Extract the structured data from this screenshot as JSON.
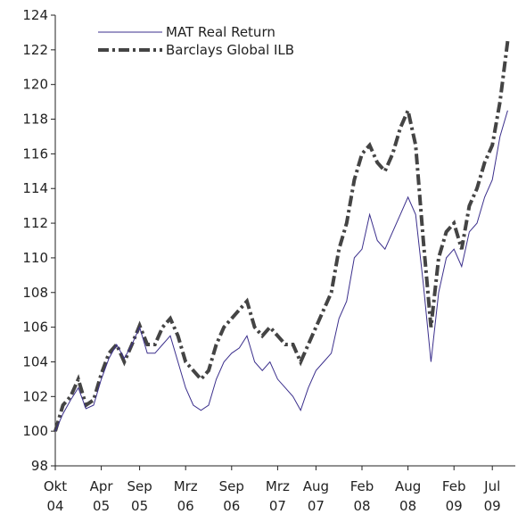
{
  "chart_data": {
    "type": "line",
    "x": [
      "2004-10",
      "2004-11",
      "2004-12",
      "2005-01",
      "2005-02",
      "2005-03",
      "2005-04",
      "2005-05",
      "2005-06",
      "2005-07",
      "2005-08",
      "2005-09",
      "2005-10",
      "2005-11",
      "2005-12",
      "2006-01",
      "2006-02",
      "2006-03",
      "2006-04",
      "2006-05",
      "2006-06",
      "2006-07",
      "2006-08",
      "2006-09",
      "2006-10",
      "2006-11",
      "2006-12",
      "2007-01",
      "2007-02",
      "2007-03",
      "2007-04",
      "2007-05",
      "2007-06",
      "2007-07",
      "2007-08",
      "2007-09",
      "2007-10",
      "2007-11",
      "2007-12",
      "2008-01",
      "2008-02",
      "2008-03",
      "2008-04",
      "2008-05",
      "2008-06",
      "2008-07",
      "2008-08",
      "2008-09",
      "2008-10",
      "2008-11",
      "2008-12",
      "2009-01",
      "2009-02",
      "2009-03",
      "2009-04",
      "2009-05",
      "2009-06",
      "2009-07",
      "2009-08",
      "2009-09"
    ],
    "series": [
      {
        "name": "MAT Real Return",
        "color": "#3b2f8c",
        "style": "solid",
        "values": [
          100.0,
          101.0,
          101.8,
          102.5,
          101.3,
          101.5,
          103.0,
          104.2,
          105.0,
          104.2,
          105.0,
          106.0,
          104.5,
          104.5,
          105.0,
          105.5,
          104.0,
          102.5,
          101.5,
          101.2,
          101.5,
          103.0,
          104.0,
          104.5,
          104.8,
          105.5,
          104.0,
          103.5,
          104.0,
          103.0,
          102.5,
          102.0,
          101.2,
          102.5,
          103.5,
          104.0,
          104.5,
          106.5,
          107.5,
          110.0,
          110.5,
          112.5,
          111.0,
          110.5,
          111.5,
          112.5,
          113.5,
          112.5,
          108.5,
          104.0,
          108.0,
          110.0,
          110.5,
          109.5,
          111.5,
          112.0,
          113.5,
          114.5,
          117.0,
          118.5
        ]
      },
      {
        "name": "Barclays Global ILB",
        "color": "#444444",
        "style": "dashdot",
        "values": [
          100.0,
          101.5,
          102.0,
          103.0,
          101.5,
          101.8,
          103.3,
          104.5,
          105.0,
          104.0,
          105.0,
          106.1,
          105.0,
          105.0,
          106.0,
          106.5,
          105.5,
          104.0,
          103.5,
          103.0,
          103.5,
          105.0,
          106.0,
          106.5,
          107.0,
          107.5,
          106.0,
          105.5,
          106.0,
          105.5,
          105.0,
          105.0,
          104.0,
          105.0,
          106.0,
          107.0,
          108.0,
          110.5,
          112.0,
          114.5,
          116.0,
          116.5,
          115.5,
          115.0,
          116.0,
          117.5,
          118.5,
          116.5,
          111.0,
          106.0,
          110.0,
          111.5,
          112.0,
          110.5,
          113.0,
          114.0,
          115.5,
          116.5,
          119.0,
          122.5
        ]
      }
    ],
    "xlim": [
      "2004-10",
      "2009-10"
    ],
    "xticks": [
      {
        "value": "2004-10",
        "label": "Okt 04"
      },
      {
        "value": "2005-04",
        "label": "Apr 05"
      },
      {
        "value": "2005-09",
        "label": "Sep 05"
      },
      {
        "value": "2006-03",
        "label": "Mrz 06"
      },
      {
        "value": "2006-09",
        "label": "Sep 06"
      },
      {
        "value": "2007-03",
        "label": "Mrz 07"
      },
      {
        "value": "2007-08",
        "label": "Aug 07"
      },
      {
        "value": "2008-02",
        "label": "Feb 08"
      },
      {
        "value": "2008-08",
        "label": "Aug 08"
      },
      {
        "value": "2009-02",
        "label": "Feb 09"
      },
      {
        "value": "2009-07",
        "label": "Jul 09"
      }
    ],
    "ylim": [
      98,
      124
    ],
    "yticks": [
      98,
      100,
      102,
      104,
      106,
      108,
      110,
      112,
      114,
      116,
      118,
      120,
      122,
      124
    ],
    "legend": "upper left"
  }
}
